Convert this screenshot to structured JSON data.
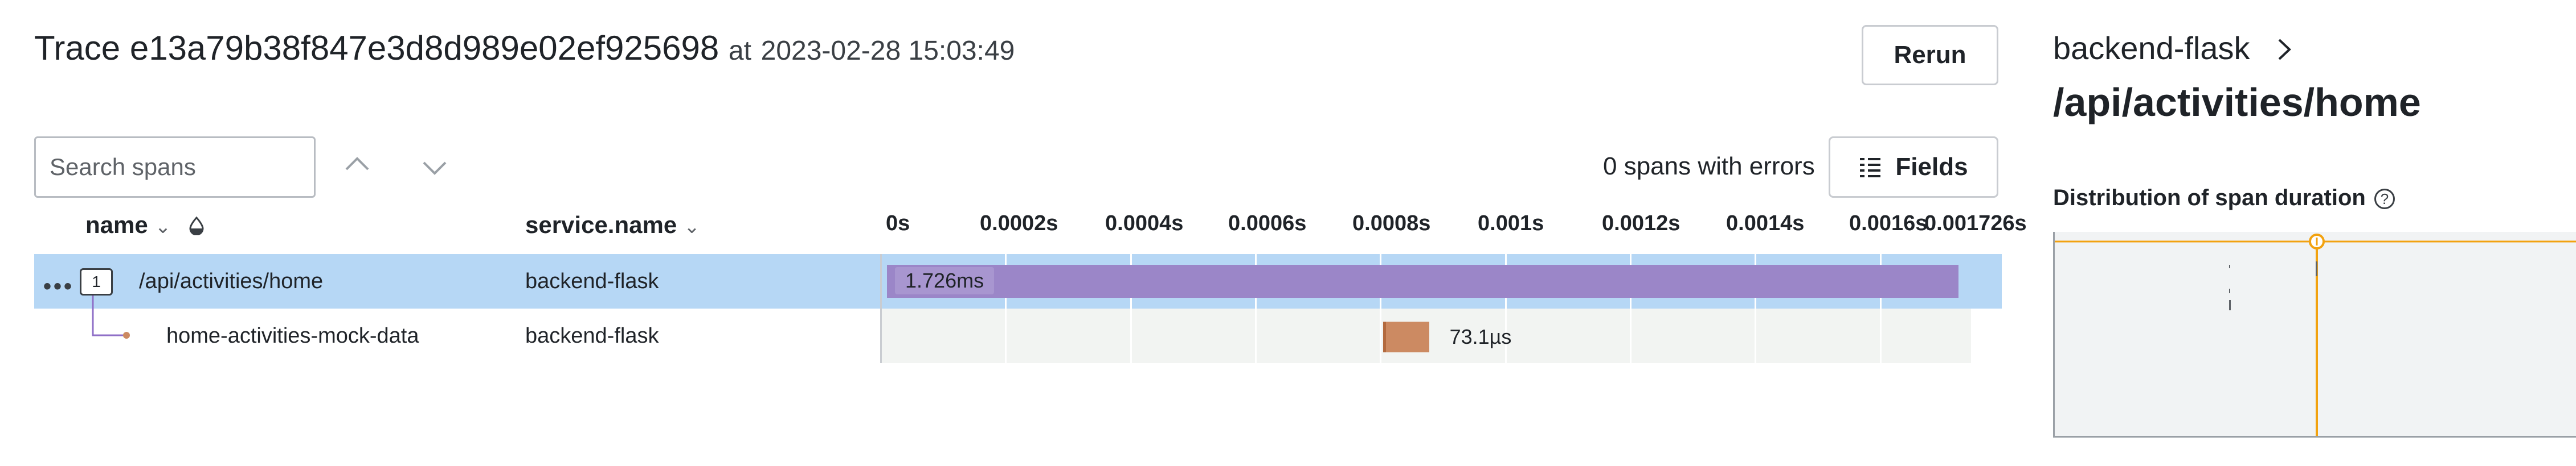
{
  "header": {
    "trace_label": "Trace",
    "trace_id": "e13a79b38f847e3d8d989e02ef925698",
    "at_label": "at",
    "timestamp": "2023-02-28 15:03:49",
    "rerun_label": "Rerun"
  },
  "toolbar": {
    "search_placeholder": "Search spans",
    "errors_text": "0 spans with errors",
    "fields_label": "Fields"
  },
  "columns": {
    "name": "name",
    "service": "service.name"
  },
  "timeline": {
    "ticks": [
      "0s",
      "0.0002s",
      "0.0004s",
      "0.0006s",
      "0.0008s",
      "0.001s",
      "0.0012s",
      "0.0014s",
      "0.0016s",
      "0.001726s"
    ],
    "total_ms": 1.726
  },
  "spans": [
    {
      "name": "/api/activities/home",
      "service": "backend-flask",
      "duration_label": "1.726ms",
      "start_ms": 0,
      "duration_ms": 1.726,
      "child_count": "1",
      "color": "#9b86c8"
    },
    {
      "name": "home-activities-mock-data",
      "service": "backend-flask",
      "duration_label": "73.1µs",
      "start_ms": 0.8,
      "duration_ms": 0.0731,
      "color": "#cc8a62"
    }
  ],
  "side": {
    "service": "backend-flask",
    "path": "/api/activities/home",
    "distribution_title": "Distribution of span duration"
  },
  "colors": {
    "selected_row": "#b6d7f5",
    "accent_orange": "#f2a20f"
  }
}
